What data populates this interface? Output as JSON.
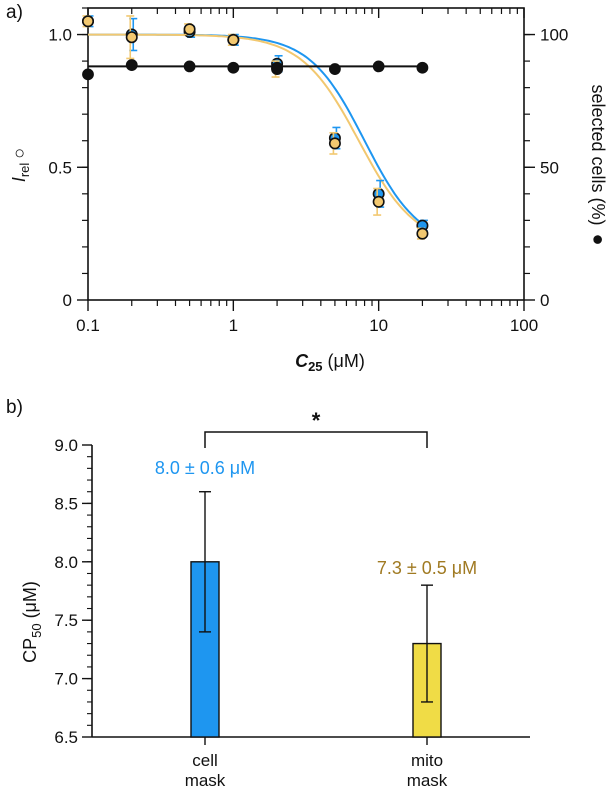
{
  "chart_data": [
    {
      "panel_label": "a)",
      "type": "scatter",
      "x_scale": "log",
      "xlabel": {
        "italic": "C",
        "sub": "25",
        "rest": " (μM)"
      },
      "xlim": [
        0.1,
        100
      ],
      "x_ticks": [
        0.1,
        1,
        10,
        100
      ],
      "x_tick_labels": [
        "0.1",
        "1",
        "10",
        "100"
      ],
      "ylabel_left": {
        "italic": "I",
        "sub": "rel",
        "symbol": "○"
      },
      "ylim_left": [
        0,
        1.1
      ],
      "y_ticks_left": [
        0,
        0.5,
        1.0
      ],
      "y_tick_labels_left": [
        "0",
        "0.5",
        "1.0"
      ],
      "ylabel_right": {
        "text": "selected cells (%)",
        "symbol": "●"
      },
      "ylim_right": [
        0,
        110
      ],
      "y_ticks_right": [
        0,
        50,
        100
      ],
      "y_tick_labels_right": [
        "0",
        "50",
        "100"
      ],
      "series": [
        {
          "name": "cell mask (Irel)",
          "axis": "left",
          "marker": "open-circle",
          "color": "#1e96f0",
          "x": [
            0.1,
            0.2,
            0.5,
            1,
            2,
            5,
            10,
            20
          ],
          "y": [
            1.05,
            1.0,
            1.01,
            0.98,
            0.89,
            0.61,
            0.4,
            0.28
          ],
          "yerr": [
            0.02,
            0.06,
            0.02,
            0.02,
            0.03,
            0.04,
            0.05,
            0.02
          ]
        },
        {
          "name": "mito mask (Irel)",
          "axis": "left",
          "marker": "open-circle",
          "color": "#f2c870",
          "x": [
            0.1,
            0.2,
            0.5,
            1,
            2,
            5,
            10,
            20
          ],
          "y": [
            1.05,
            0.99,
            1.02,
            0.98,
            0.87,
            0.59,
            0.37,
            0.25
          ],
          "yerr": [
            0.02,
            0.08,
            0.02,
            0.02,
            0.03,
            0.04,
            0.05,
            0.02
          ]
        },
        {
          "name": "selected cells (%)",
          "axis": "right",
          "marker": "filled-circle",
          "color": "#111111",
          "x": [
            0.1,
            0.2,
            0.5,
            1,
            2,
            5,
            10,
            20
          ],
          "y": [
            85,
            88.5,
            88,
            87.5,
            87.5,
            87,
            88,
            87.5
          ]
        }
      ],
      "fits": [
        {
          "name": "cell mask fit",
          "color": "#1e96f0",
          "top": 1.0,
          "bottom": 0.2,
          "ec50": 8.0,
          "hill": 2.3,
          "x_range": [
            0.1,
            20
          ]
        },
        {
          "name": "mito mask fit",
          "color": "#f2c870",
          "top": 1.0,
          "bottom": 0.2,
          "ec50": 7.3,
          "hill": 2.2,
          "x_range": [
            0.1,
            20
          ]
        },
        {
          "name": "selected cells fit",
          "color": "#111111",
          "axis": "right",
          "level": 88,
          "x_range": [
            0.1,
            20
          ]
        }
      ]
    },
    {
      "panel_label": "b)",
      "type": "bar",
      "ylabel": {
        "base": "CP",
        "sub": "50",
        "rest": " (μM)"
      },
      "ylim": [
        6.5,
        9.0
      ],
      "y_ticks": [
        6.5,
        7.0,
        7.5,
        8.0,
        8.5,
        9.0
      ],
      "y_tick_labels": [
        "6.5",
        "7.0",
        "7.5",
        "8.0",
        "8.5",
        "9.0"
      ],
      "categories": [
        [
          "cell",
          "mask"
        ],
        [
          "mito",
          "mask"
        ]
      ],
      "values": [
        8.0,
        7.3
      ],
      "errors": [
        0.6,
        0.5
      ],
      "bar_colors": [
        "#1e96f0",
        "#f0dc46"
      ],
      "value_labels": [
        "8.0 ± 0.6 μM",
        "7.3 ± 0.5 μM"
      ],
      "value_label_colors": [
        "#1e96f0",
        "#a07a22"
      ],
      "significance": "*"
    }
  ]
}
